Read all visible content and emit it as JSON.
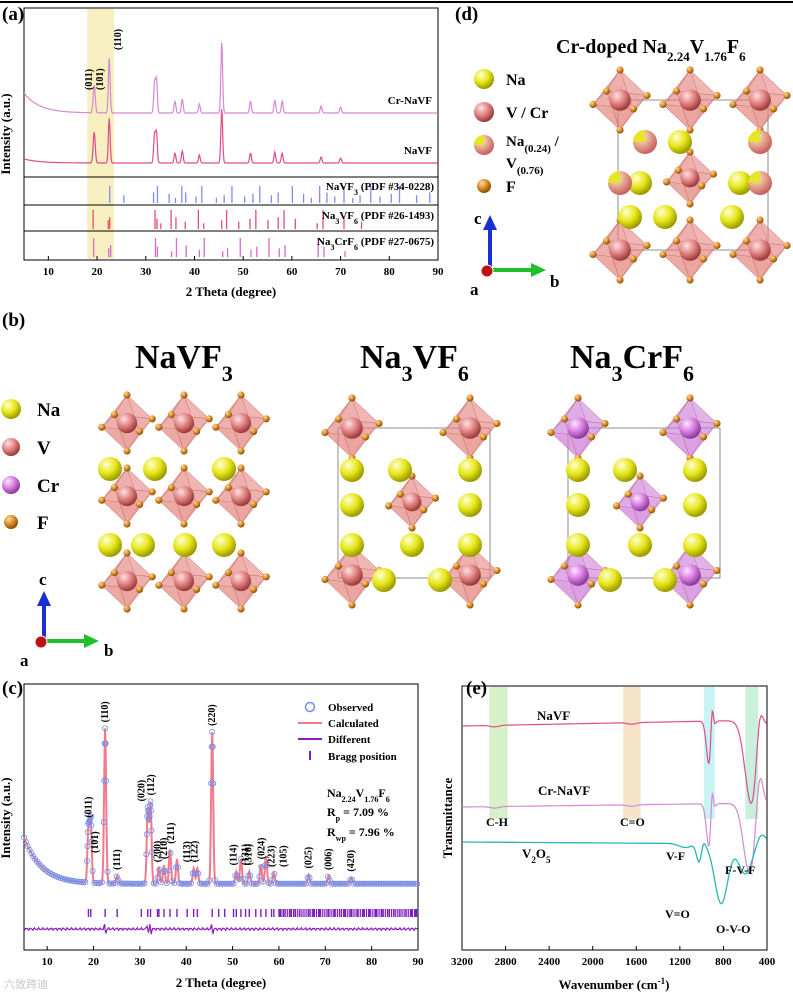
{
  "panel_labels": {
    "a": "(a)",
    "b": "(b)",
    "c": "(c)",
    "d": "(d)",
    "e": "(e)"
  },
  "colors": {
    "na": "#e6e619",
    "v": "#e48a8a",
    "cr": "#d57be0",
    "f": "#d98a26",
    "poly_v": "#e4827a",
    "poly_cr": "#cc7adb",
    "crnavf_line": "#d48ad4",
    "navf_line": "#e04c8c",
    "calc": "#f47a8a",
    "obs": "#6f8ff0",
    "diff": "#8e1dbd",
    "bragg": "#7d1fbf",
    "v2o5": "#26b8b0"
  },
  "chart_data": [
    {
      "id": "a",
      "type": "line",
      "title": "",
      "xlabel": "2 Theta (degree)",
      "ylabel": "Intensity (a.u.)",
      "xlim": [
        5,
        90
      ],
      "xticks": [
        "10",
        "20",
        "30",
        "40",
        "50",
        "60",
        "70",
        "80",
        "90"
      ],
      "highlight_x": [
        18,
        23.5
      ],
      "peak_labels": [
        "(011)",
        "(101)",
        "(110)"
      ],
      "series": [
        {
          "name": "Cr-NaVF",
          "label": "Cr-NaVF",
          "peaks": [
            [
              19.3,
              14
            ],
            [
              19.5,
              18
            ],
            [
              22.5,
              55
            ],
            [
              31.8,
              30
            ],
            [
              32.2,
              33
            ],
            [
              36,
              12
            ],
            [
              37.5,
              14
            ],
            [
              41,
              9
            ],
            [
              45.6,
              72
            ],
            [
              51.5,
              12
            ],
            [
              56.5,
              13
            ],
            [
              58,
              12
            ],
            [
              66,
              7
            ],
            [
              70,
              6
            ]
          ]
        },
        {
          "name": "NaVF",
          "label": "NaVF",
          "peaks": [
            [
              19.3,
              16
            ],
            [
              19.5,
              20
            ],
            [
              22.5,
              45
            ],
            [
              31.8,
              28
            ],
            [
              32.2,
              30
            ],
            [
              36,
              10
            ],
            [
              37.5,
              12
            ],
            [
              41,
              8
            ],
            [
              45.6,
              55
            ],
            [
              51.5,
              10
            ],
            [
              56.5,
              11
            ],
            [
              58,
              10
            ],
            [
              66,
              6
            ],
            [
              70,
              5
            ]
          ]
        }
      ],
      "references": [
        {
          "label": "NaVF3 (PDF #34-0228)",
          "text_main": "NaVF",
          "sub": "3",
          "text_tail": " (PDF #34-0228)",
          "color": "#7d8df2",
          "lines": [
            22.6,
            25.5,
            31.6,
            32.4,
            34.8,
            36.1,
            37.4,
            38.2,
            40.3,
            41.5,
            44.5,
            46.1,
            47.7,
            50.3,
            52,
            53.4,
            55.8,
            57.2,
            60.1,
            62.4,
            64,
            65.7,
            67.2,
            68.8,
            70.7,
            72.5,
            74,
            76.2,
            78.1,
            80.4,
            82.1,
            85.6,
            88.3
          ]
        },
        {
          "label": "Na3VF6 (PDF #26-1493)",
          "text_pre": "Na",
          "sub1": "3",
          "text_mid": "VF",
          "sub2": "6",
          "text_tail": " (PDF #26-1493)",
          "color": "#e0506a",
          "lines": [
            19.2,
            22.3,
            22.6,
            31.9,
            32.3,
            33.1,
            35.2,
            36.2,
            38.1,
            40.8,
            41.9,
            45.6,
            46.6,
            49.1,
            51.4,
            52.6,
            55.1,
            57.2,
            58.4,
            60.7,
            65.2,
            66.4,
            70.7,
            74.3
          ]
        },
        {
          "label": "Na3CrF6 (PDF #27-0675)",
          "text_pre": "Na",
          "sub1": "3",
          "text_mid": "CrF",
          "sub2": "6",
          "text_tail": " (PDF #27-0675)",
          "color": "#d36bd0",
          "lines": [
            19.3,
            22.4,
            22.8,
            32.0,
            32.4,
            35.3,
            36.3,
            38.3,
            41.0,
            42.0,
            45.8,
            46.8,
            49.4,
            51.6,
            52.8,
            55.3,
            57.4,
            58.6,
            65.4,
            66.6,
            70.9
          ]
        }
      ]
    },
    {
      "id": "c",
      "type": "line",
      "title": "",
      "xlabel": "2 Theta (degree)",
      "ylabel": "Intensity (a.u.)",
      "xlim": [
        5,
        90
      ],
      "xticks": [
        "10",
        "20",
        "30",
        "40",
        "50",
        "60",
        "70",
        "80",
        "90"
      ],
      "legend": [
        "Observed",
        "Calculated",
        "Different",
        "Bragg position"
      ],
      "formula": {
        "pre": "Na",
        "s1": "2.24",
        "mid": "V",
        "s2": "1.76",
        "tail": "F",
        "s3": "6"
      },
      "rp": {
        "label": "R",
        "sub": "p",
        "value": " = 7.09 %"
      },
      "rwp": {
        "label": "R",
        "sub": "wp",
        "value": " = 7.96 %"
      },
      "peaks": [
        [
          18.9,
          35
        ],
        [
          19.4,
          40
        ],
        [
          22.5,
          100
        ],
        [
          25.1,
          5
        ],
        [
          31.7,
          48
        ],
        [
          32.3,
          52
        ],
        [
          34.1,
          10
        ],
        [
          35.2,
          12
        ],
        [
          36.5,
          22
        ],
        [
          38,
          16
        ],
        [
          41.6,
          10
        ],
        [
          42.4,
          10
        ],
        [
          45.6,
          98
        ],
        [
          50.8,
          8
        ],
        [
          51.8,
          16
        ],
        [
          53.6,
          8
        ],
        [
          56.1,
          12
        ],
        [
          57.2,
          18
        ],
        [
          58.9,
          7
        ],
        [
          66.4,
          6
        ],
        [
          70.7,
          5
        ],
        [
          75.6,
          4
        ]
      ],
      "hkl_labels": [
        {
          "t": "(011)",
          "x": 18.9
        },
        {
          "t": "(101)",
          "x": 20.3
        },
        {
          "t": "(110)",
          "x": 22.5
        },
        {
          "t": "(111)",
          "x": 25.1
        },
        {
          "t": "(020)",
          "x": 30.3
        },
        {
          "t": "(112)",
          "x": 32.4
        },
        {
          "t": "(200)",
          "x": 33.8
        },
        {
          "t": "(210)",
          "x": 35.2
        },
        {
          "t": "(211)",
          "x": 36.7
        },
        {
          "t": "(113)",
          "x": 40.2
        },
        {
          "t": "(122)",
          "x": 41.8
        },
        {
          "t": "(220)",
          "x": 45.6
        },
        {
          "t": "(114)",
          "x": 50.2
        },
        {
          "t": "(131)",
          "x": 52.8
        },
        {
          "t": "(310)",
          "x": 53.4
        },
        {
          "t": "(024)",
          "x": 56.2
        },
        {
          "t": "(223)",
          "x": 58.4
        },
        {
          "t": "(105)",
          "x": 61
        },
        {
          "t": "(025)",
          "x": 66.4
        },
        {
          "t": "(006)",
          "x": 70.7
        },
        {
          "t": "(420)",
          "x": 75.6
        }
      ]
    },
    {
      "id": "e",
      "type": "line",
      "title": "",
      "xlabel": "Wavenumber (cm-1)",
      "xlabel_main": "Wavenumber (cm",
      "xlabel_sup": "-1",
      "xlabel_tail": ")",
      "ylabel": "Transmittance",
      "xlim": [
        3200,
        400
      ],
      "xticks": [
        "3200",
        "2800",
        "2400",
        "2000",
        "1600",
        "1200",
        "800",
        "400"
      ],
      "bands": [
        {
          "from": 2950,
          "to": 2780,
          "color": "#d8f0c8"
        },
        {
          "from": 1720,
          "to": 1560,
          "color": "#f7e3c8"
        },
        {
          "from": 980,
          "to": 880,
          "color": "#c8f4f4"
        },
        {
          "from": 600,
          "to": 480,
          "color": "#c8f0dc"
        }
      ],
      "series": [
        {
          "name": "NaVF",
          "label": "NaVF",
          "color": "#e04c8c"
        },
        {
          "name": "Cr-NaVF",
          "label": "Cr-NaVF",
          "color": "#d48ad4"
        },
        {
          "name": "V2O5",
          "label": "V2O5",
          "label_main": "V",
          "s1": "2",
          "label_mid": "O",
          "s2": "5",
          "color": "#26b8b0"
        }
      ],
      "annotations": [
        "C-H",
        "C=O",
        "V-F",
        "F-V-F",
        "V=O",
        "O-V-O"
      ]
    }
  ],
  "panel_b": {
    "titles": [
      {
        "main": "NaVF",
        "sub": "3",
        "tail": ""
      },
      {
        "main": "Na",
        "sub": "3",
        "tail": "VF",
        "sub2": "6"
      },
      {
        "main": "Na",
        "sub": "3",
        "tail": "CrF",
        "sub2": "6"
      }
    ],
    "legend": [
      "Na",
      "V",
      "Cr",
      "F"
    ],
    "axes": {
      "c": "c",
      "a": "a",
      "b": "b"
    }
  },
  "panel_d": {
    "title_main": "Cr-doped Na",
    "s1": "2.24",
    "mid": "V",
    "s2": "1.76",
    "tail": "F",
    "s3": "6",
    "legend": [
      "Na",
      "V / Cr",
      "Na(0.24) /",
      "V(0.76)",
      "F"
    ],
    "leg_na_main": "Na",
    "leg_na_sub": "(0.24)",
    "leg_na_tail": " /",
    "leg_v_main": "V",
    "leg_v_sub": "(0.76)",
    "axes": {
      "c": "c",
      "a": "a",
      "b": "b"
    }
  },
  "watermark": "六致跨迪"
}
